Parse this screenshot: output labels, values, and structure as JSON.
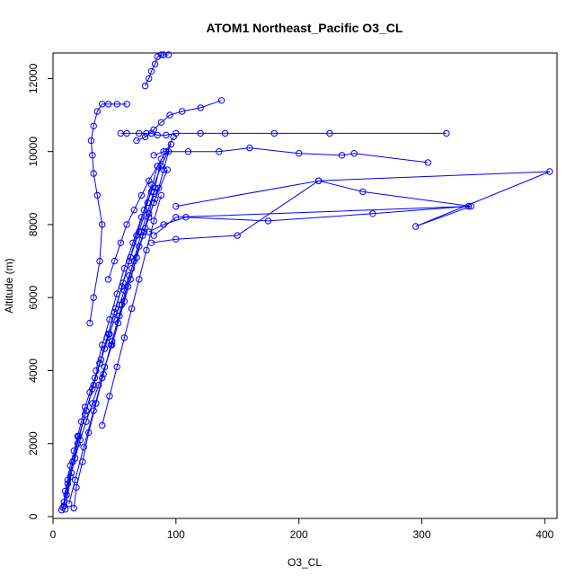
{
  "chart_data": {
    "type": "scatter",
    "title": "ATOM1 Northeast_Pacific O3_CL",
    "xlabel": "O3_CL",
    "ylabel": "Altitude (m)",
    "xlim": [
      0,
      410
    ],
    "ylim": [
      -50,
      12700
    ],
    "xticks": [
      0,
      100,
      200,
      300,
      400
    ],
    "yticks": [
      0,
      2000,
      4000,
      6000,
      8000,
      10000,
      12000
    ],
    "grid": false,
    "legend": "none",
    "color": "#0000ff",
    "marker": "open-circle",
    "connected": true,
    "series": [
      {
        "x": [
          7,
          9,
          10,
          12,
          14,
          17,
          20,
          23,
          26,
          30,
          34,
          38,
          42,
          46,
          50,
          54,
          58,
          62,
          66,
          70,
          74,
          78,
          82,
          86,
          90,
          94
        ],
        "y": [
          180,
          400,
          700,
          1000,
          1400,
          1800,
          2200,
          2600,
          3000,
          3400,
          3800,
          4200,
          4600,
          5000,
          5400,
          5800,
          6200,
          6600,
          7000,
          7400,
          7800,
          8200,
          8600,
          9000,
          9500,
          10000
        ]
      },
      {
        "x": [
          8,
          11,
          14,
          18,
          22,
          27,
          32,
          37,
          42,
          48,
          53,
          58,
          63,
          68,
          73,
          78,
          83,
          88
        ],
        "y": [
          250,
          600,
          1100,
          1600,
          2100,
          2600,
          3100,
          3600,
          4100,
          4700,
          5300,
          5900,
          6500,
          7100,
          7700,
          8300,
          9000,
          9800
        ]
      },
      {
        "x": [
          9,
          12,
          16,
          21,
          27,
          33,
          39,
          45,
          51,
          57,
          63,
          70,
          77,
          85
        ],
        "y": [
          300,
          900,
          1500,
          2200,
          2900,
          3600,
          4300,
          5000,
          5700,
          6400,
          7100,
          7800,
          8600,
          9600
        ]
      },
      {
        "x": [
          10,
          15,
          20,
          26,
          32,
          38,
          44,
          50,
          56,
          62,
          68,
          74,
          80
        ],
        "y": [
          200,
          1200,
          2000,
          2800,
          3500,
          4200,
          4900,
          5600,
          6300,
          7000,
          7700,
          8400,
          9100
        ]
      },
      {
        "x": [
          17,
          19,
          24,
          29,
          35,
          41,
          47,
          54,
          61,
          68,
          75,
          83,
          93
        ],
        "y": [
          230,
          800,
          1500,
          2300,
          3100,
          3900,
          4700,
          5500,
          6300,
          7100,
          7900,
          8700,
          9500
        ]
      },
      {
        "x": [
          13,
          18,
          25,
          33,
          40,
          48,
          56,
          64,
          72,
          82
        ],
        "y": [
          350,
          1000,
          1900,
          2900,
          3800,
          4800,
          5800,
          6800,
          7800,
          8900
        ]
      },
      {
        "x": [
          30,
          33,
          38,
          40,
          36,
          33,
          32,
          31,
          33,
          36,
          40,
          45,
          52,
          60
        ],
        "y": [
          5300,
          6000,
          7000,
          8000,
          8800,
          9400,
          9900,
          10300,
          10700,
          11100,
          11300,
          11300,
          11300,
          11300
        ]
      },
      {
        "x": [
          55,
          60,
          70,
          76,
          80,
          85,
          92,
          100,
          120,
          140,
          180,
          225,
          320
        ],
        "y": [
          10500,
          10500,
          10500,
          10500,
          10500,
          10450,
          10450,
          10500,
          10500,
          10500,
          10500,
          10500,
          10500
        ]
      },
      {
        "x": [
          82,
          90,
          110,
          135,
          160,
          200,
          235,
          245,
          305
        ],
        "y": [
          9900,
          10000,
          10000,
          10000,
          10100,
          9950,
          9900,
          9950,
          9700
        ]
      },
      {
        "x": [
          80,
          100,
          150,
          216,
          252,
          340,
          295,
          404,
          216,
          100
        ],
        "y": [
          7500,
          7600,
          7700,
          9200,
          8900,
          8500,
          7950,
          9450,
          9200,
          8500
        ]
      },
      {
        "x": [
          78,
          90,
          108,
          175,
          260,
          338,
          100,
          82
        ],
        "y": [
          7800,
          8000,
          8200,
          8100,
          8300,
          8500,
          8200,
          7700
        ]
      },
      {
        "x": [
          75,
          78,
          80,
          83,
          85,
          88,
          90,
          94
        ],
        "y": [
          11800,
          12000,
          12200,
          12400,
          12600,
          12650,
          12650,
          12650
        ]
      },
      {
        "x": [
          68,
          75,
          82,
          88,
          95,
          105,
          120,
          137
        ],
        "y": [
          10300,
          10400,
          10600,
          10800,
          11000,
          11100,
          11200,
          11400
        ]
      },
      {
        "x": [
          45,
          50,
          55,
          60,
          66,
          72,
          78,
          85,
          92,
          98
        ],
        "y": [
          6500,
          7000,
          7500,
          8000,
          8400,
          8800,
          9200,
          9600,
          10000,
          10400
        ]
      },
      {
        "x": [
          35,
          40,
          46,
          52,
          58,
          65,
          72,
          80,
          88,
          96
        ],
        "y": [
          4000,
          4700,
          5400,
          6100,
          6800,
          7500,
          8200,
          8900,
          9600,
          10200
        ]
      },
      {
        "x": [
          40,
          46,
          52,
          58,
          64,
          70,
          76,
          82,
          88
        ],
        "y": [
          2500,
          3300,
          4100,
          4900,
          5700,
          6500,
          7300,
          8100,
          8800
        ]
      }
    ]
  }
}
